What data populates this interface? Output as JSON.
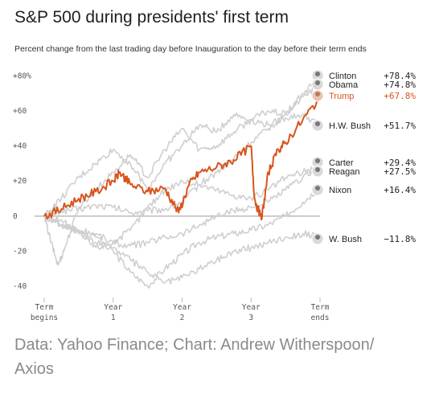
{
  "title": "S&P 500 during presidents' first term",
  "subtitle": "Percent change from the last trading day before Inauguration to the day before their term ends",
  "source": "Data: Yahoo Finance; Chart: Andrew Witherspoon/ Axios",
  "colors": {
    "highlight": "#d9541e",
    "series": "#cfcfcf",
    "axis": "#999999",
    "text": "#333333"
  },
  "chart_data": {
    "type": "line",
    "ylim": [
      -45,
      82
    ],
    "xlim": [
      0,
      4
    ],
    "y_ticks": [
      {
        "value": 80,
        "label": "+80%"
      },
      {
        "value": 60,
        "label": "+60"
      },
      {
        "value": 40,
        "label": "+40"
      },
      {
        "value": 20,
        "label": "+20"
      },
      {
        "value": 0,
        "label": "0"
      },
      {
        "value": -20,
        "label": "-20"
      },
      {
        "value": -40,
        "label": "-40"
      }
    ],
    "x_ticks": [
      {
        "value": 0,
        "line1": "Term",
        "line2": "begins"
      },
      {
        "value": 1,
        "line1": "Year",
        "line2": "1"
      },
      {
        "value": 2,
        "line1": "Year",
        "line2": "2"
      },
      {
        "value": 3,
        "line1": "Year",
        "line2": "3"
      },
      {
        "value": 4,
        "line1": "Term",
        "line2": "ends"
      }
    ],
    "series": [
      {
        "name": "Clinton",
        "value_label": "+78.4%",
        "highlight": false,
        "label_y": 78.4,
        "x": [
          0,
          0.25,
          0.5,
          0.75,
          1,
          1.25,
          1.5,
          1.75,
          2,
          2.25,
          2.5,
          2.75,
          3,
          3.25,
          3.5,
          3.75,
          4
        ],
        "y": [
          0,
          3,
          4,
          6,
          5,
          2,
          3,
          4,
          8,
          18,
          25,
          33,
          42,
          50,
          58,
          70,
          78.4
        ]
      },
      {
        "name": "Obama",
        "value_label": "+74.8%",
        "highlight": false,
        "label_y": 74.8,
        "x": [
          0,
          0.1,
          0.2,
          0.3,
          0.5,
          0.75,
          1,
          1.25,
          1.5,
          1.75,
          2,
          2.25,
          2.5,
          2.75,
          3,
          3.25,
          3.5,
          3.75,
          4
        ],
        "y": [
          0,
          -15,
          -28,
          -18,
          5,
          15,
          25,
          35,
          22,
          38,
          50,
          38,
          40,
          48,
          55,
          60,
          58,
          68,
          74.8
        ]
      },
      {
        "name": "Trump",
        "value_label": "+67.8%",
        "highlight": true,
        "label_y": 67.8,
        "x": [
          0,
          0.25,
          0.5,
          0.75,
          1,
          1.1,
          1.25,
          1.5,
          1.75,
          1.95,
          2.1,
          2.25,
          2.5,
          2.75,
          3,
          3.05,
          3.15,
          3.25,
          3.4,
          3.5,
          3.75,
          4
        ],
        "y": [
          0,
          4,
          10,
          14,
          20,
          25,
          18,
          14,
          16,
          2,
          18,
          25,
          28,
          32,
          40,
          10,
          -2,
          25,
          38,
          42,
          55,
          67.8
        ]
      },
      {
        "name": "H.W. Bush",
        "value_label": "+51.7%",
        "highlight": false,
        "label_y": 51.7,
        "x": [
          0,
          0.25,
          0.5,
          0.75,
          1,
          1.25,
          1.5,
          1.75,
          2,
          2.25,
          2.5,
          2.75,
          3,
          3.25,
          3.5,
          3.75,
          4
        ],
        "y": [
          0,
          10,
          22,
          30,
          38,
          30,
          15,
          30,
          40,
          52,
          48,
          58,
          55,
          52,
          56,
          58,
          51.7
        ]
      },
      {
        "name": "Carter",
        "value_label": "+29.4%",
        "highlight": false,
        "label_y": 29.4,
        "x": [
          0,
          0.25,
          0.5,
          0.75,
          1,
          1.25,
          1.5,
          1.75,
          2,
          2.25,
          2.5,
          2.75,
          3,
          3.25,
          3.5,
          3.75,
          4
        ],
        "y": [
          0,
          -5,
          -8,
          -10,
          -15,
          -17,
          -15,
          -12,
          -10,
          -5,
          0,
          3,
          5,
          8,
          15,
          22,
          29.4
        ]
      },
      {
        "name": "Reagan",
        "value_label": "+27.5%",
        "highlight": false,
        "label_y": 27.5,
        "x": [
          0,
          0.25,
          0.5,
          0.75,
          1,
          1.25,
          1.5,
          1.75,
          2,
          2.25,
          2.5,
          2.75,
          3,
          3.25,
          3.5,
          3.75,
          4
        ],
        "y": [
          0,
          -5,
          -10,
          -18,
          -15,
          -8,
          5,
          15,
          20,
          18,
          15,
          12,
          10,
          15,
          22,
          25,
          27.5
        ]
      },
      {
        "name": "Nixon",
        "value_label": "+16.4%",
        "highlight": false,
        "label_y": 16.4,
        "x": [
          0,
          0.25,
          0.5,
          0.75,
          1,
          1.25,
          1.5,
          1.75,
          2,
          2.25,
          2.5,
          2.75,
          3,
          3.25,
          3.5,
          3.75,
          4
        ],
        "y": [
          0,
          -5,
          -8,
          -15,
          -20,
          -32,
          -40,
          -30,
          -22,
          -15,
          -12,
          -10,
          -8,
          -5,
          0,
          8,
          16.4
        ]
      },
      {
        "name": "W. Bush",
        "value_label": "−11.8%",
        "highlight": false,
        "label_y": -11.8,
        "x": [
          0,
          0.25,
          0.5,
          0.75,
          1,
          1.25,
          1.5,
          1.75,
          2,
          2.25,
          2.5,
          2.75,
          3,
          3.25,
          3.5,
          3.75,
          4
        ],
        "y": [
          0,
          -2,
          -10,
          -12,
          -18,
          -25,
          -32,
          -38,
          -35,
          -30,
          -25,
          -20,
          -18,
          -15,
          -12,
          -10,
          -11.8
        ]
      }
    ]
  }
}
